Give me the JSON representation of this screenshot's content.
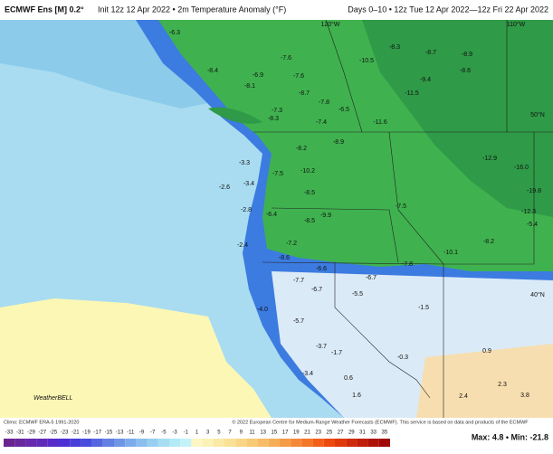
{
  "header": {
    "title": "ECMWF Ens [M] 0.2°",
    "subtitle": "Init 12z 12 Apr 2022 • 2m Temperature Anomaly (°F)",
    "range": "Days 0–10 • 12z Tue 12 Apr 2022—12z Fri 22 Apr 2022"
  },
  "map": {
    "grid_labels": [
      "120°W",
      "110°W",
      "50°N",
      "40°N"
    ],
    "values": [
      -6.3,
      -7.6,
      -8.4,
      -6.9,
      -8.1,
      -7.6,
      -8.7,
      -7.8,
      -6.5,
      -7.3,
      -8.3,
      -7.4,
      -8.9,
      -8.2,
      -3.3,
      -7.5,
      -10.2,
      -2.6,
      -3.4,
      -8.5,
      -2.8,
      -6.4,
      -8.5,
      -9.9,
      -7.5,
      -2.4,
      -7.2,
      -8.6,
      -6.6,
      -7.7,
      -6.7,
      -5.5,
      -6.7,
      -7.8,
      "-4.0",
      -5.7,
      -3.7,
      -1.7,
      -3.4,
      0.6,
      -0.3,
      2.3,
      3.8,
      -8.3,
      -8.7,
      -8.6,
      -10.5,
      -11.6,
      -12.9,
      "-16.0",
      -19.8,
      -12.3,
      -10.1,
      -8.2,
      -5.4,
      -9.4,
      -11.5,
      -8.9,
      -1.5,
      0.9,
      1.6,
      2.4
    ]
  },
  "footer": {
    "climo": "Climo: ECMWF ERA-5 1991-2020",
    "copyright": "© 2022 European Centre for Medium-Range Weather Forecasts (ECMWF). This service is based on data and products of the ECMWF",
    "logo": "WeatherBELL",
    "max_min": "Max: 4.8 • Min: -21.8",
    "scale": [
      -33,
      -31,
      -29,
      -27,
      -25,
      -23,
      -21,
      -19,
      -17,
      -15,
      -13,
      -11,
      -9,
      -7,
      -5,
      -3,
      -1,
      1,
      3,
      5,
      7,
      9,
      11,
      13,
      15,
      17,
      19,
      21,
      23,
      25,
      27,
      29,
      31,
      33,
      35
    ]
  }
}
